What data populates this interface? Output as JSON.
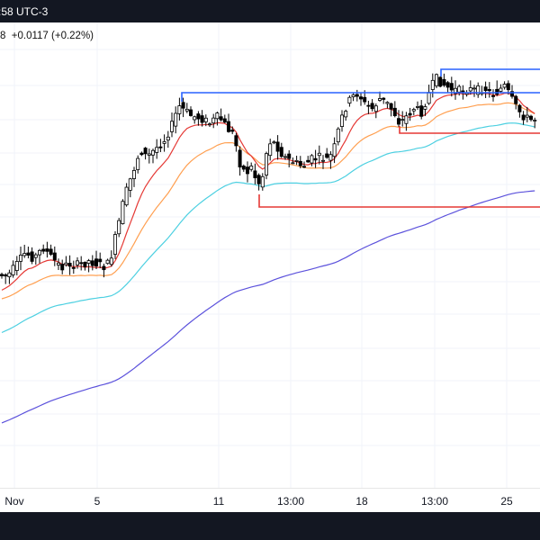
{
  "header": {
    "clock": ":58 UTC-3",
    "change_prefix": "8",
    "change_value": "+0.0117 (+0.22%)"
  },
  "chart_data": {
    "type": "candlestick",
    "title": "",
    "x_ticks": [
      "Nov",
      "5",
      "11",
      "13:00",
      "18",
      "13:00",
      "25"
    ],
    "grid": true,
    "legend": "none",
    "colors": {
      "up_body": "#ffffff",
      "down_body": "#000000",
      "wick": "#000000",
      "ema_fast": "#e53935",
      "ema_mid": "#ff9f50",
      "ema_slow": "#4dd0e1",
      "ema_long": "#5c52dc",
      "level_blue": "#2962ff",
      "level_red": "#e53935"
    },
    "series": [
      {
        "name": "",
        "kind": "moving-average",
        "color": "#e53935"
      },
      {
        "name": "",
        "kind": "moving-average",
        "color": "#ff9f50"
      },
      {
        "name": "",
        "kind": "moving-average",
        "color": "#4dd0e1"
      },
      {
        "name": "",
        "kind": "moving-average",
        "color": "#5c52dc"
      }
    ],
    "price_levels": [
      {
        "kind": "resistance",
        "color": "#2962ff"
      },
      {
        "kind": "resistance",
        "color": "#2962ff"
      },
      {
        "kind": "support",
        "color": "#e53935"
      },
      {
        "kind": "support",
        "color": "#e53935"
      }
    ]
  }
}
